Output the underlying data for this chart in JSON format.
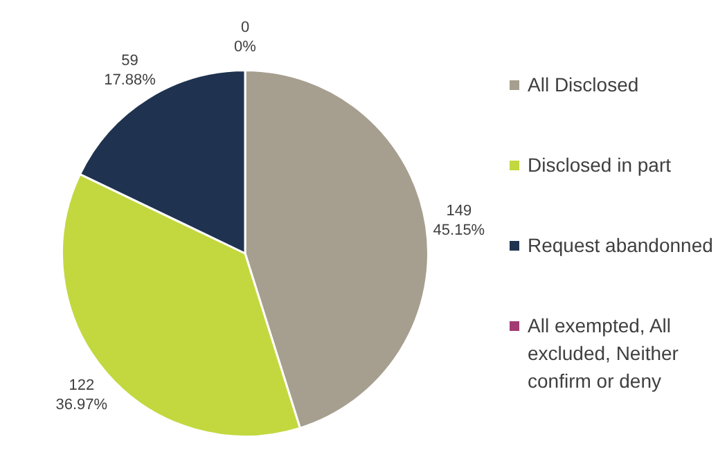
{
  "chart_data": {
    "type": "pie",
    "categories": [
      "All Disclosed",
      "Disclosed in part",
      "Request abandonned",
      "All exempted, All excluded, Neither confirm or deny"
    ],
    "values": [
      149,
      122,
      59,
      0
    ],
    "colors": [
      "#a69f8f",
      "#c3d83f",
      "#1f3350",
      "#a23b72"
    ],
    "value_labels": [
      "149\n45.15%",
      "122\n36.97%",
      "59\n17.88%",
      "0\n0%"
    ],
    "legend": "right"
  }
}
